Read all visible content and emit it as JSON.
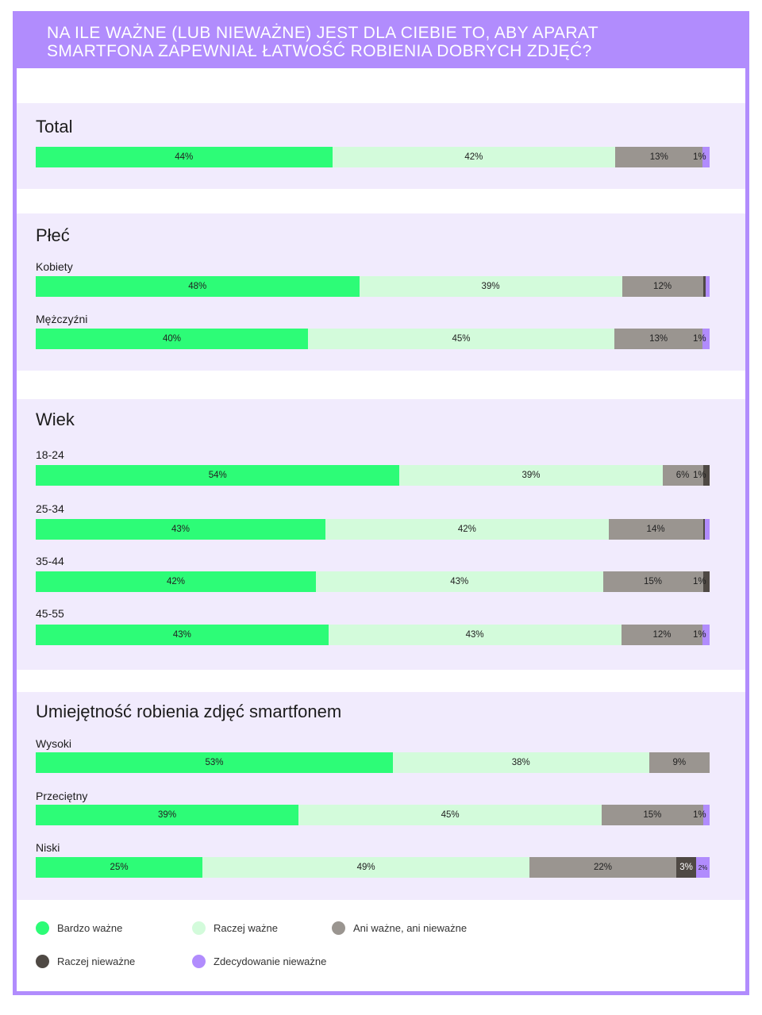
{
  "title_lines": [
    "NA ILE WAŻNE (LUB NIEWAŻNE) JEST DLA CIEBIE TO, ABY APARAT",
    "SMARTFONA ZAPEWNIAŁ ŁATWOŚĆ ROBIENIA DOBRYCH ZDJĘĆ?"
  ],
  "colors": {
    "frame": "#b18cfd",
    "panel": "#f1ebfd",
    "Bardzo ważne": "#2dfc77",
    "Raczej ważne": "#d3fbdb",
    "Ani ważne, ani nieważne": "#9a9590",
    "Raczej nieważne": "#4f4944",
    "Zdecydowanie nieważne": "#b18cfd"
  },
  "legend": [
    "Bardzo ważne",
    "Raczej ważne",
    "Ani ważne, ani nieważne",
    "Raczej nieważne",
    "Zdecydowanie nieważne"
  ],
  "chart_data": {
    "type": "bar",
    "orientation": "horizontal",
    "stacked": true,
    "unit": "%",
    "series_names": [
      "Bardzo ważne",
      "Raczej ważne",
      "Ani ważne, ani nieważne",
      "Raczej nieważne",
      "Zdecydowanie nieważne"
    ],
    "groups": [
      {
        "title": "Total",
        "rows": [
          {
            "label": "",
            "values": [
              44,
              42,
              13,
              0,
              1
            ],
            "labels": [
              "44%",
              "42%",
              "13%",
              "",
              "1%"
            ]
          }
        ]
      },
      {
        "title": "Płeć",
        "rows": [
          {
            "label": "Kobiety",
            "values": [
              48,
              39,
              12,
              0.4,
              0.6
            ],
            "labels": [
              "48%",
              "39%",
              "12%",
              "",
              ""
            ]
          },
          {
            "label": "Mężczyźni",
            "values": [
              40,
              45,
              13,
              0,
              1
            ],
            "labels": [
              "40%",
              "45%",
              "13%",
              "",
              "1%"
            ]
          }
        ]
      },
      {
        "title": "Wiek",
        "rows": [
          {
            "label": "18-24",
            "values": [
              54,
              39,
              6,
              1,
              0
            ],
            "labels": [
              "54%",
              "39%",
              "6%",
              "1%",
              ""
            ]
          },
          {
            "label": "25-34",
            "values": [
              43,
              42,
              14,
              0.3,
              0.7
            ],
            "labels": [
              "43%",
              "42%",
              "14%",
              "",
              ""
            ]
          },
          {
            "label": "35-44",
            "values": [
              42,
              43,
              15,
              1,
              0
            ],
            "labels": [
              "42%",
              "43%",
              "15%",
              "1%",
              ""
            ]
          },
          {
            "label": "45-55",
            "values": [
              43,
              43,
              12,
              0,
              1
            ],
            "labels": [
              "43%",
              "43%",
              "12%",
              "",
              "1%"
            ]
          }
        ]
      },
      {
        "title": "Umiejętność robienia zdjęć smartfonem",
        "rows": [
          {
            "label": "Wysoki",
            "values": [
              53,
              38,
              9,
              0,
              0
            ],
            "labels": [
              "53%",
              "38%",
              "9%",
              "",
              ""
            ]
          },
          {
            "label": "Przeciętny",
            "values": [
              39,
              45,
              15,
              0,
              1
            ],
            "labels": [
              "39%",
              "45%",
              "15%",
              "",
              "1%"
            ]
          },
          {
            "label": "Niski",
            "values": [
              25,
              49,
              22,
              3,
              2
            ],
            "labels": [
              "25%",
              "49%",
              "22%",
              "3%",
              "2%"
            ]
          }
        ]
      }
    ]
  }
}
